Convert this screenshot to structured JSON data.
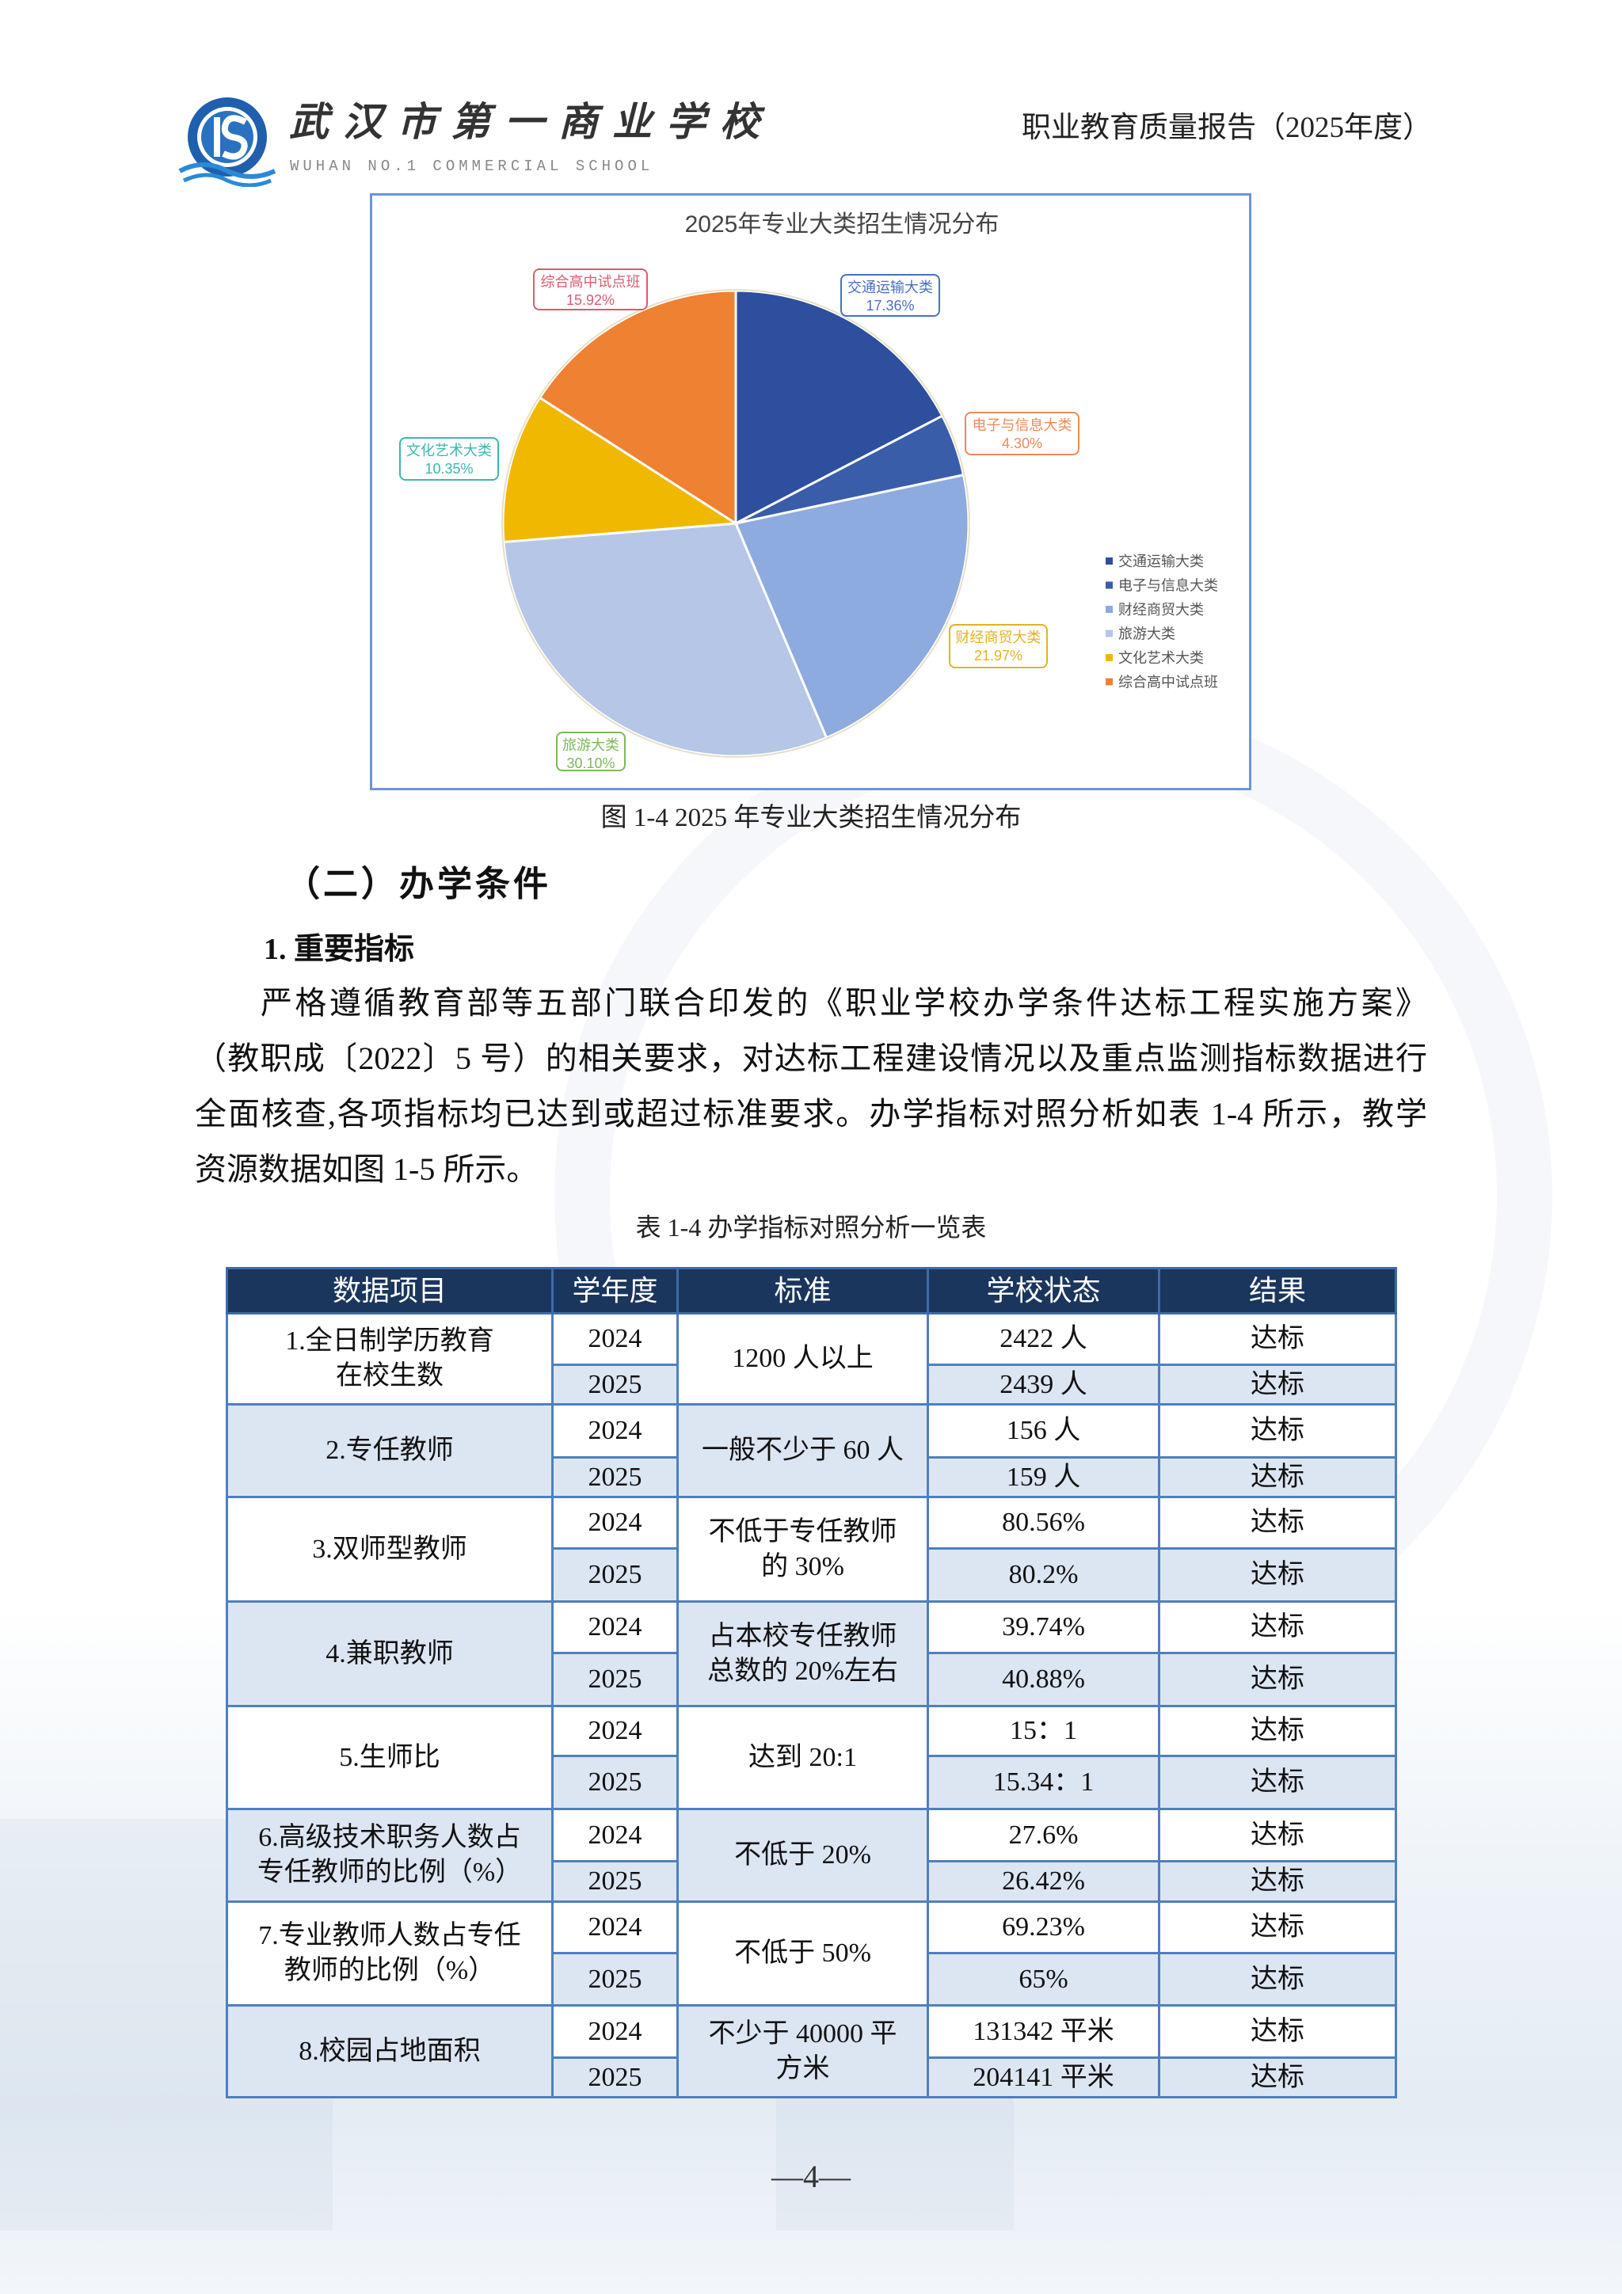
{
  "header": {
    "school_name_cn": "武汉市第一商业学校",
    "school_name_en": "WUHAN NO.1 COMMERCIAL SCHOOL",
    "report_title": "职业教育质量报告（2025年度）"
  },
  "chart_data": {
    "type": "pie",
    "title": "2025年专业大类招生情况分布",
    "categories": [
      "交通运输大类",
      "电子与信息大类",
      "财经商贸大类",
      "旅游大类",
      "文化艺术大类",
      "综合高中试点班"
    ],
    "values": [
      17.36,
      4.3,
      21.97,
      30.1,
      10.35,
      15.92
    ],
    "labels": [
      "17.36%",
      "4.30%",
      "21.97%",
      "30.10%",
      "10.35%",
      "15.92%"
    ],
    "colors": [
      "#2d4f9e",
      "#3a5da9",
      "#8eabdf",
      "#b5c6e7",
      "#f0b800",
      "#ee8132"
    ],
    "label_colors": [
      "#4a6fc2",
      "#ee8a55",
      "#e2b320",
      "#7cb85a",
      "#3bb8ad",
      "#dd5a70"
    ],
    "start": "12 o'clock, clockwise",
    "legend_position": "right"
  },
  "figure_caption": "图 1-4 2025 年专业大类招生情况分布",
  "section_heading": "（二）办学条件",
  "subheading": "1. 重要指标",
  "paragraph_lines": [
    "严格遵循教育部等五部门联合印发的《职业学校办学条件达标工程实施方案》",
    "（教职成〔2022〕5 号）的相关要求，对达标工程建设情况以及重点监测指标数据进行",
    "全面核查,各项指标均已达到或超过标准要求。办学指标对照分析如表 1-4 所示，教学",
    "资源数据如图 1-5 所示。"
  ],
  "table_caption": "表 1-4 办学指标对照分析一览表",
  "table": {
    "headers": [
      "数据项目",
      "学年度",
      "标准",
      "学校状态",
      "结果"
    ],
    "groups": [
      {
        "item": "1.全日制学历教育\n在校生数",
        "standard": "1200 人以上",
        "rows": [
          {
            "year": "2024",
            "status": "2422 人",
            "result": "达标"
          },
          {
            "year": "2025",
            "status": "2439 人",
            "result": "达标"
          }
        ]
      },
      {
        "item": "2.专任教师",
        "standard": "一般不少于 60 人",
        "rows": [
          {
            "year": "2024",
            "status": "156 人",
            "result": "达标"
          },
          {
            "year": "2025",
            "status": "159 人",
            "result": "达标"
          }
        ]
      },
      {
        "item": "3.双师型教师",
        "standard": "不低于专任教师\n的 30%",
        "rows": [
          {
            "year": "2024",
            "status": "80.56%",
            "result": "达标"
          },
          {
            "year": "2025",
            "status": "80.2%",
            "result": "达标"
          }
        ]
      },
      {
        "item": "4.兼职教师",
        "standard": "占本校专任教师\n总数的 20%左右",
        "rows": [
          {
            "year": "2024",
            "status": "39.74%",
            "result": "达标"
          },
          {
            "year": "2025",
            "status": "40.88%",
            "result": "达标"
          }
        ]
      },
      {
        "item": "5.生师比",
        "standard": "达到 20:1",
        "rows": [
          {
            "year": "2024",
            "status": "15：1",
            "result": "达标"
          },
          {
            "year": "2025",
            "status": "15.34：1",
            "result": "达标"
          }
        ]
      },
      {
        "item": "6.高级技术职务人数占\n专任教师的比例（%）",
        "standard": "不低于 20%",
        "rows": [
          {
            "year": "2024",
            "status": "27.6%",
            "result": "达标"
          },
          {
            "year": "2025",
            "status": "26.42%",
            "result": "达标"
          }
        ]
      },
      {
        "item": "7.专业教师人数占专任\n教师的比例（%）",
        "standard": "不低于 50%",
        "rows": [
          {
            "year": "2024",
            "status": "69.23%",
            "result": "达标"
          },
          {
            "year": "2025",
            "status": "65%",
            "result": "达标"
          }
        ]
      },
      {
        "item": "8.校园占地面积",
        "standard": "不少于 40000 平\n方米",
        "rows": [
          {
            "year": "2024",
            "status": "131342 平米",
            "result": "达标"
          },
          {
            "year": "2025",
            "status": "204141 平米",
            "result": "达标"
          }
        ]
      }
    ]
  },
  "page_number": "—4—"
}
